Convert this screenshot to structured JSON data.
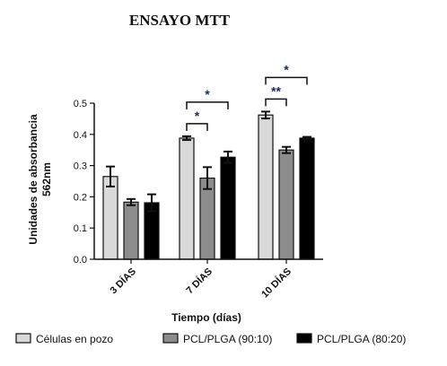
{
  "chart_data": {
    "type": "bar",
    "title": "ENSAYO MTT",
    "xlabel": "Tiempo (días)",
    "ylabel_lines": [
      "Unidades de absorbancia",
      "562nm"
    ],
    "categories": [
      "3 DÍAS",
      "7 DÍAS",
      "10 DÍAS"
    ],
    "ylim": [
      0,
      0.5
    ],
    "yticks": [
      "0.0",
      "0.1",
      "0.2",
      "0.3",
      "0.4",
      "0.5"
    ],
    "legend_position": "bottom",
    "series": [
      {
        "name": "Células en pozo",
        "values": [
          0.265,
          0.388,
          0.462
        ],
        "errors": [
          0.032,
          0.006,
          0.011
        ],
        "color": "#d9d9d9"
      },
      {
        "name": "PCL/PLGA (90:10)",
        "values": [
          0.183,
          0.26,
          0.35
        ],
        "errors": [
          0.01,
          0.035,
          0.01
        ],
        "color": "#8c8c8c"
      },
      {
        "name": "PCL/PLGA (80:20)",
        "values": [
          0.181,
          0.327,
          0.388
        ],
        "errors": [
          0.027,
          0.018,
          0.004
        ],
        "color": "#000000"
      }
    ],
    "significance": [
      {
        "category": "7 DÍAS",
        "from_series": 0,
        "to_series": 1,
        "label": "*"
      },
      {
        "category": "7 DÍAS",
        "from_series": 0,
        "to_series": 2,
        "label": "*"
      },
      {
        "category": "10 DÍAS",
        "from_series": 0,
        "to_series": 1,
        "label": "**"
      },
      {
        "category": "10 DÍAS",
        "from_series": 0,
        "to_series": 2,
        "label": "*"
      }
    ]
  }
}
